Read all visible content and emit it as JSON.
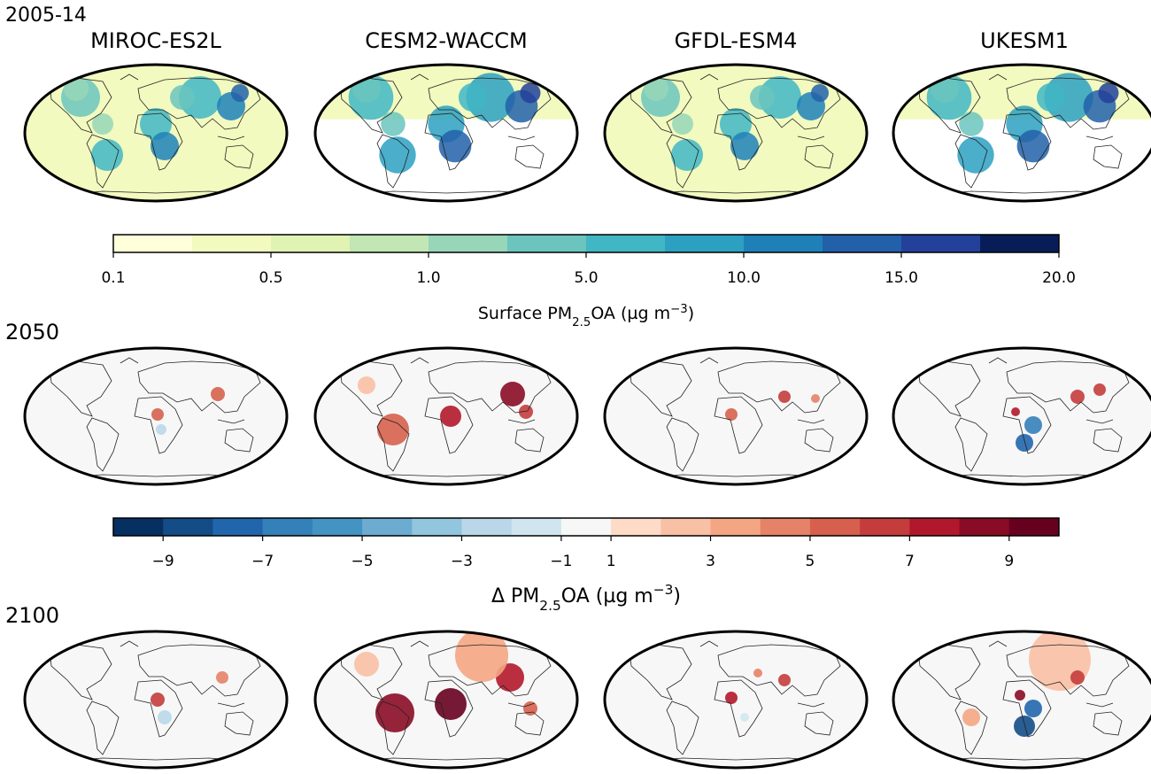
{
  "figure": {
    "periods": [
      "2005-14",
      "2050",
      "2100"
    ],
    "models": [
      "MIROC-ES2L",
      "CESM2-WACCM",
      "GFDL-ESM4",
      "UKESM1"
    ],
    "colorbars": [
      {
        "ticks": [
          0.1,
          0.5,
          {
            "value": 1,
            "label": "1.0"
          },
          {
            "value": 5,
            "label": "5.0"
          },
          {
            "value": 10,
            "label": "10.0"
          },
          {
            "value": 15,
            "label": "15.0"
          },
          {
            "value": 20,
            "label": "20.0"
          }
        ],
        "label": [
          "Surface PM",
          "2.5",
          "OA (µg m",
          "−3",
          ")"
        ],
        "colors": [
          "#ffffd9",
          "#f2fabf",
          "#e0f3b2",
          "#c2e6b4",
          "#97d6b9",
          "#6bc4bd",
          "#41b6c4",
          "#2ca0c1",
          "#1f80b8",
          "#2260a9",
          "#23409a",
          "#081d58"
        ]
      },
      {
        "ticks": [
          {
            "value": -9,
            "label": "−9"
          },
          {
            "value": -7,
            "label": "−7"
          },
          {
            "value": -5,
            "label": "−5"
          },
          {
            "value": -3,
            "label": "−3"
          },
          {
            "value": -1,
            "label": "−1"
          },
          1,
          3,
          5,
          7,
          9
        ],
        "label": [
          "Δ PM",
          "2.5",
          "OA (µg m",
          "−3",
          ")"
        ],
        "colors": [
          "#053061",
          "#134c87",
          "#2166ac",
          "#3480b9",
          "#4393c3",
          "#6dacd1",
          "#92c5de",
          "#b9d7e8",
          "#d1e5f0",
          "#f7f7f7",
          "#fddbc7",
          "#f8c0a4",
          "#f4a582",
          "#e58268",
          "#d6604d",
          "#c43c3c",
          "#b2182b",
          "#8a0b25",
          "#67001f"
        ]
      }
    ]
  }
}
